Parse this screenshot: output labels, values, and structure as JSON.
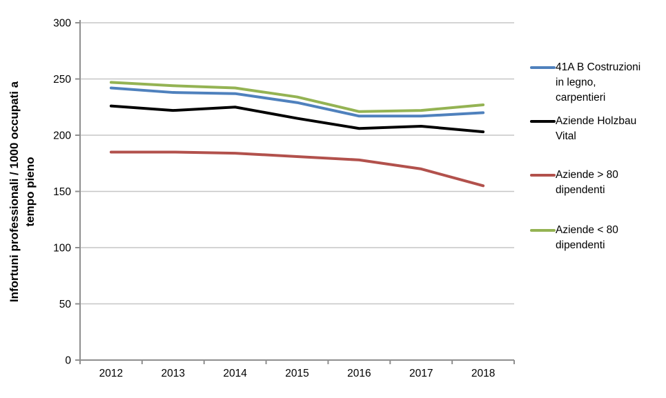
{
  "chart_data": {
    "type": "line",
    "x": [
      "2012",
      "2013",
      "2014",
      "2015",
      "2016",
      "2017",
      "2018"
    ],
    "series": [
      {
        "name": "41A B Costruzioni in legno, carpentieri",
        "label_lines": [
          "41A B Costruzioni",
          "in legno,",
          "carpentieri"
        ],
        "color": "#4F81BD",
        "values": [
          242,
          238,
          237,
          229,
          217,
          217,
          220
        ]
      },
      {
        "name": "Aziende Holzbau Vital",
        "label_lines": [
          "Aziende Holzbau",
          "Vital"
        ],
        "color": "#000000",
        "values": [
          226,
          222,
          225,
          215,
          206,
          208,
          203
        ]
      },
      {
        "name": "Aziende > 80 dipendenti",
        "label_lines": [
          "Aziende > 80",
          "dipendenti"
        ],
        "color": "#B2514C",
        "values": [
          185,
          185,
          184,
          181,
          178,
          170,
          155
        ]
      },
      {
        "name": "Aziende < 80 dipendenti",
        "label_lines": [
          "Aziende < 80",
          "dipendenti"
        ],
        "color": "#94B353",
        "values": [
          247,
          244,
          242,
          234,
          221,
          222,
          227
        ]
      }
    ],
    "title": "",
    "xlabel": "",
    "ylabel": "Infortuni professionali / 1000 occupati a tempo pieno",
    "ylabel_lines": [
      "Infortuni professionali / 1000 occupati a",
      "tempo pieno"
    ],
    "ylim": [
      0,
      300
    ],
    "ytick_step": 50,
    "yticks": [
      0,
      50,
      100,
      150,
      200,
      250,
      300
    ],
    "grid": true,
    "legend_position": "right",
    "colors": {
      "axis": "#8E8E8E",
      "gridline": "#C6C6C6",
      "tick_label": "#000000"
    }
  }
}
